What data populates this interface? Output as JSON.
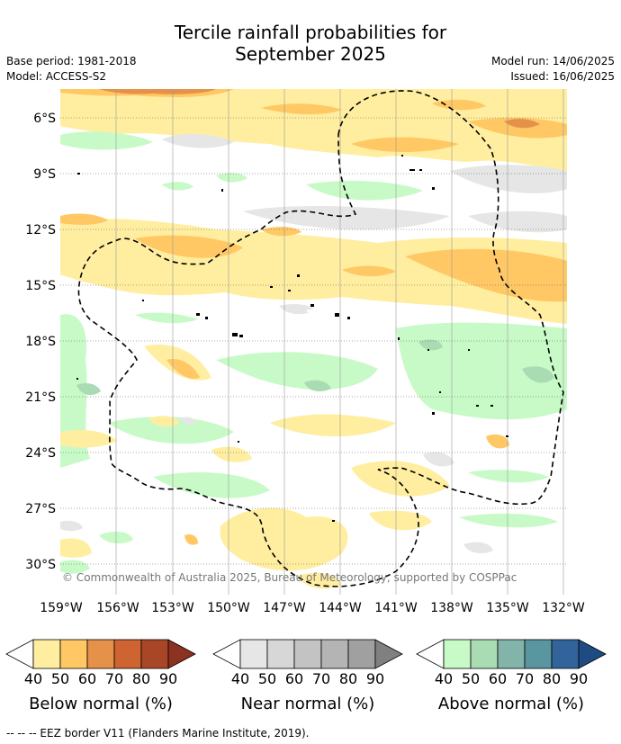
{
  "title_line1": "Tercile rainfall probabilities for",
  "title_line2": "September 2025",
  "meta": {
    "base_period": "Base period: 1981-2018",
    "model": "Model: ACCESS-S2",
    "model_run": "Model run: 14/06/2025",
    "issued": "Issued: 16/06/2025"
  },
  "map": {
    "lat_labels": [
      "6°S",
      "9°S",
      "12°S",
      "15°S",
      "18°S",
      "21°S",
      "24°S",
      "27°S",
      "30°S"
    ],
    "lon_labels": [
      "159°W",
      "156°W",
      "153°W",
      "150°W",
      "147°W",
      "144°W",
      "141°W",
      "138°W",
      "135°W",
      "132°W"
    ],
    "copyright": "© Commonwealth of Australia 2025, Bureau of Meteorology, supported by COSPPac"
  },
  "colorbars": [
    {
      "label": "Below normal (%)",
      "ticks": [
        "40",
        "50",
        "60",
        "70",
        "80",
        "90"
      ],
      "colors": [
        "#ffffff",
        "#ffeea0",
        "#ffc864",
        "#e6914a",
        "#cd6432",
        "#aa4628",
        "#8c3220"
      ]
    },
    {
      "label": "Near normal (%)",
      "ticks": [
        "40",
        "50",
        "60",
        "70",
        "80",
        "90"
      ],
      "colors": [
        "#ffffff",
        "#e6e6e6",
        "#d7d7d7",
        "#c3c3c3",
        "#b4b4b4",
        "#a0a0a0",
        "#808080"
      ]
    },
    {
      "label": "Above normal (%)",
      "ticks": [
        "40",
        "50",
        "60",
        "70",
        "80",
        "90"
      ],
      "colors": [
        "#ffffff",
        "#c8fac8",
        "#aadcb4",
        "#82b4aa",
        "#5a96a0",
        "#32649b",
        "#1e4b82"
      ]
    }
  ],
  "footer": "-- -- -- EEZ border V11 (Flanders Marine Institute, 2019)."
}
